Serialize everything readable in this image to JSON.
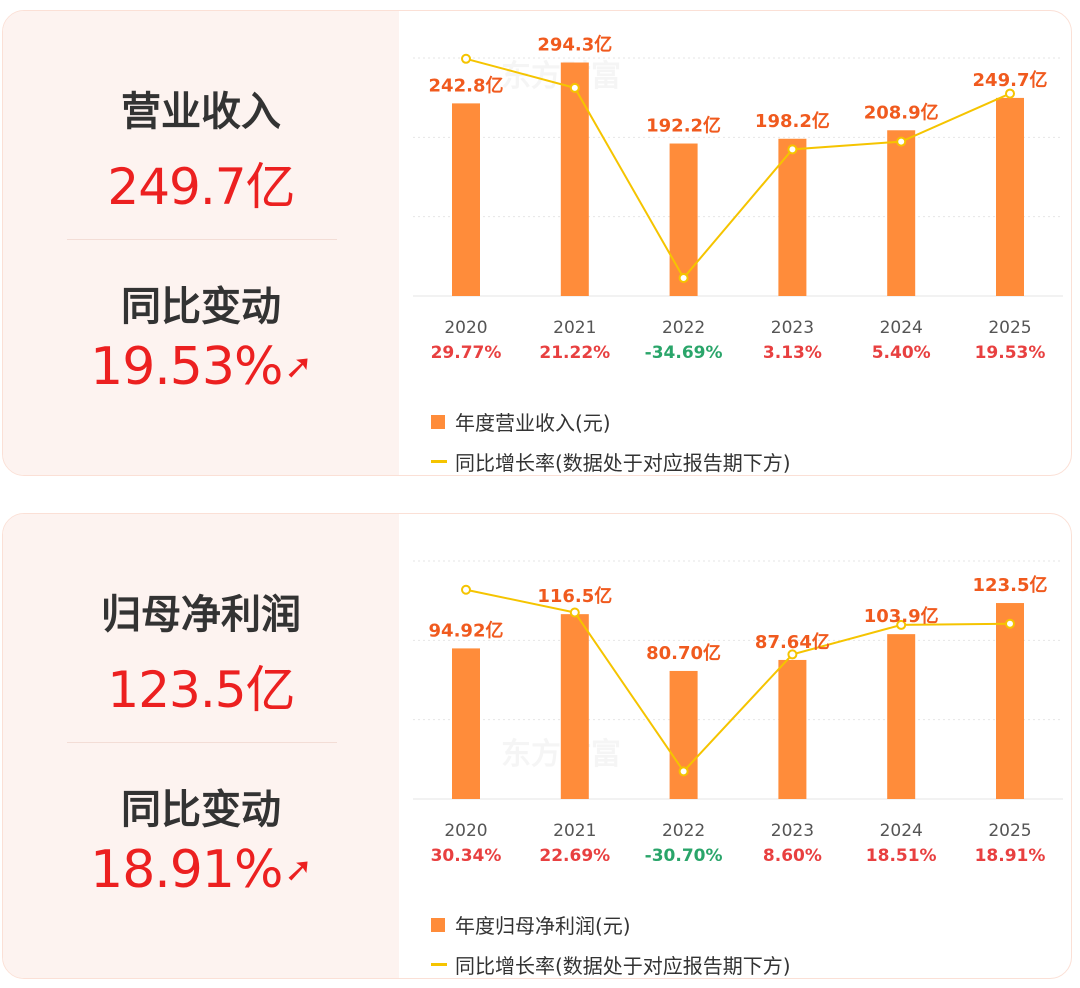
{
  "watermark": "东方财富",
  "colors": {
    "bar": "#ff8c3a",
    "bar_label": "#f05a1e",
    "line": "#f5c400",
    "up": "#e84040",
    "down": "#2aa56a",
    "grid": "#e6e6e6"
  },
  "cards": [
    {
      "title": "营业收入",
      "value": "249.7亿",
      "change_title": "同比变动",
      "change": "19.53%",
      "change_icon": "arrow-up-icon",
      "arrow": "➚"
    },
    {
      "title": "归母净利润",
      "value": "123.5亿",
      "change_title": "同比变动",
      "change": "18.91%",
      "change_icon": "arrow-up-icon",
      "arrow": "➚"
    }
  ],
  "chart_data": [
    {
      "type": "bar+line",
      "categories": [
        "2020",
        "2021",
        "2022",
        "2023",
        "2024",
        "2025"
      ],
      "bar_series": {
        "name": "年度营业收入(元)",
        "values": [
          242.8,
          294.3,
          192.2,
          198.2,
          208.9,
          249.7
        ],
        "labels": [
          "242.8亿",
          "294.3亿",
          "192.2亿",
          "198.2亿",
          "208.9亿",
          "249.7亿"
        ]
      },
      "line_series": {
        "name": "同比增长率(数据处于对应报告期下方)",
        "values": [
          29.77,
          21.22,
          -34.69,
          3.13,
          5.4,
          19.53
        ],
        "labels": [
          "29.77%",
          "21.22%",
          "-34.69%",
          "3.13%",
          "5.40%",
          "19.53%"
        ]
      },
      "ylim": [
        0,
        300
      ],
      "y2lim": [
        -40,
        30
      ],
      "grid": true,
      "legend": "bottom-left"
    },
    {
      "type": "bar+line",
      "categories": [
        "2020",
        "2021",
        "2022",
        "2023",
        "2024",
        "2025"
      ],
      "bar_series": {
        "name": "年度归母净利润(元)",
        "values": [
          94.92,
          116.5,
          80.7,
          87.64,
          103.9,
          123.5
        ],
        "labels": [
          "94.92亿",
          "116.5亿",
          "80.70亿",
          "87.64亿",
          "103.9亿",
          "123.5亿"
        ]
      },
      "line_series": {
        "name": "同比增长率(数据处于对应报告期下方)",
        "values": [
          30.34,
          22.69,
          -30.7,
          8.6,
          18.51,
          18.91
        ],
        "labels": [
          "30.34%",
          "22.69%",
          "-30.70%",
          "8.60%",
          "18.51%",
          "18.91%"
        ]
      },
      "ylim": [
        0,
        150
      ],
      "y2lim": [
        -40,
        40
      ],
      "grid": true,
      "legend": "bottom-left"
    }
  ]
}
